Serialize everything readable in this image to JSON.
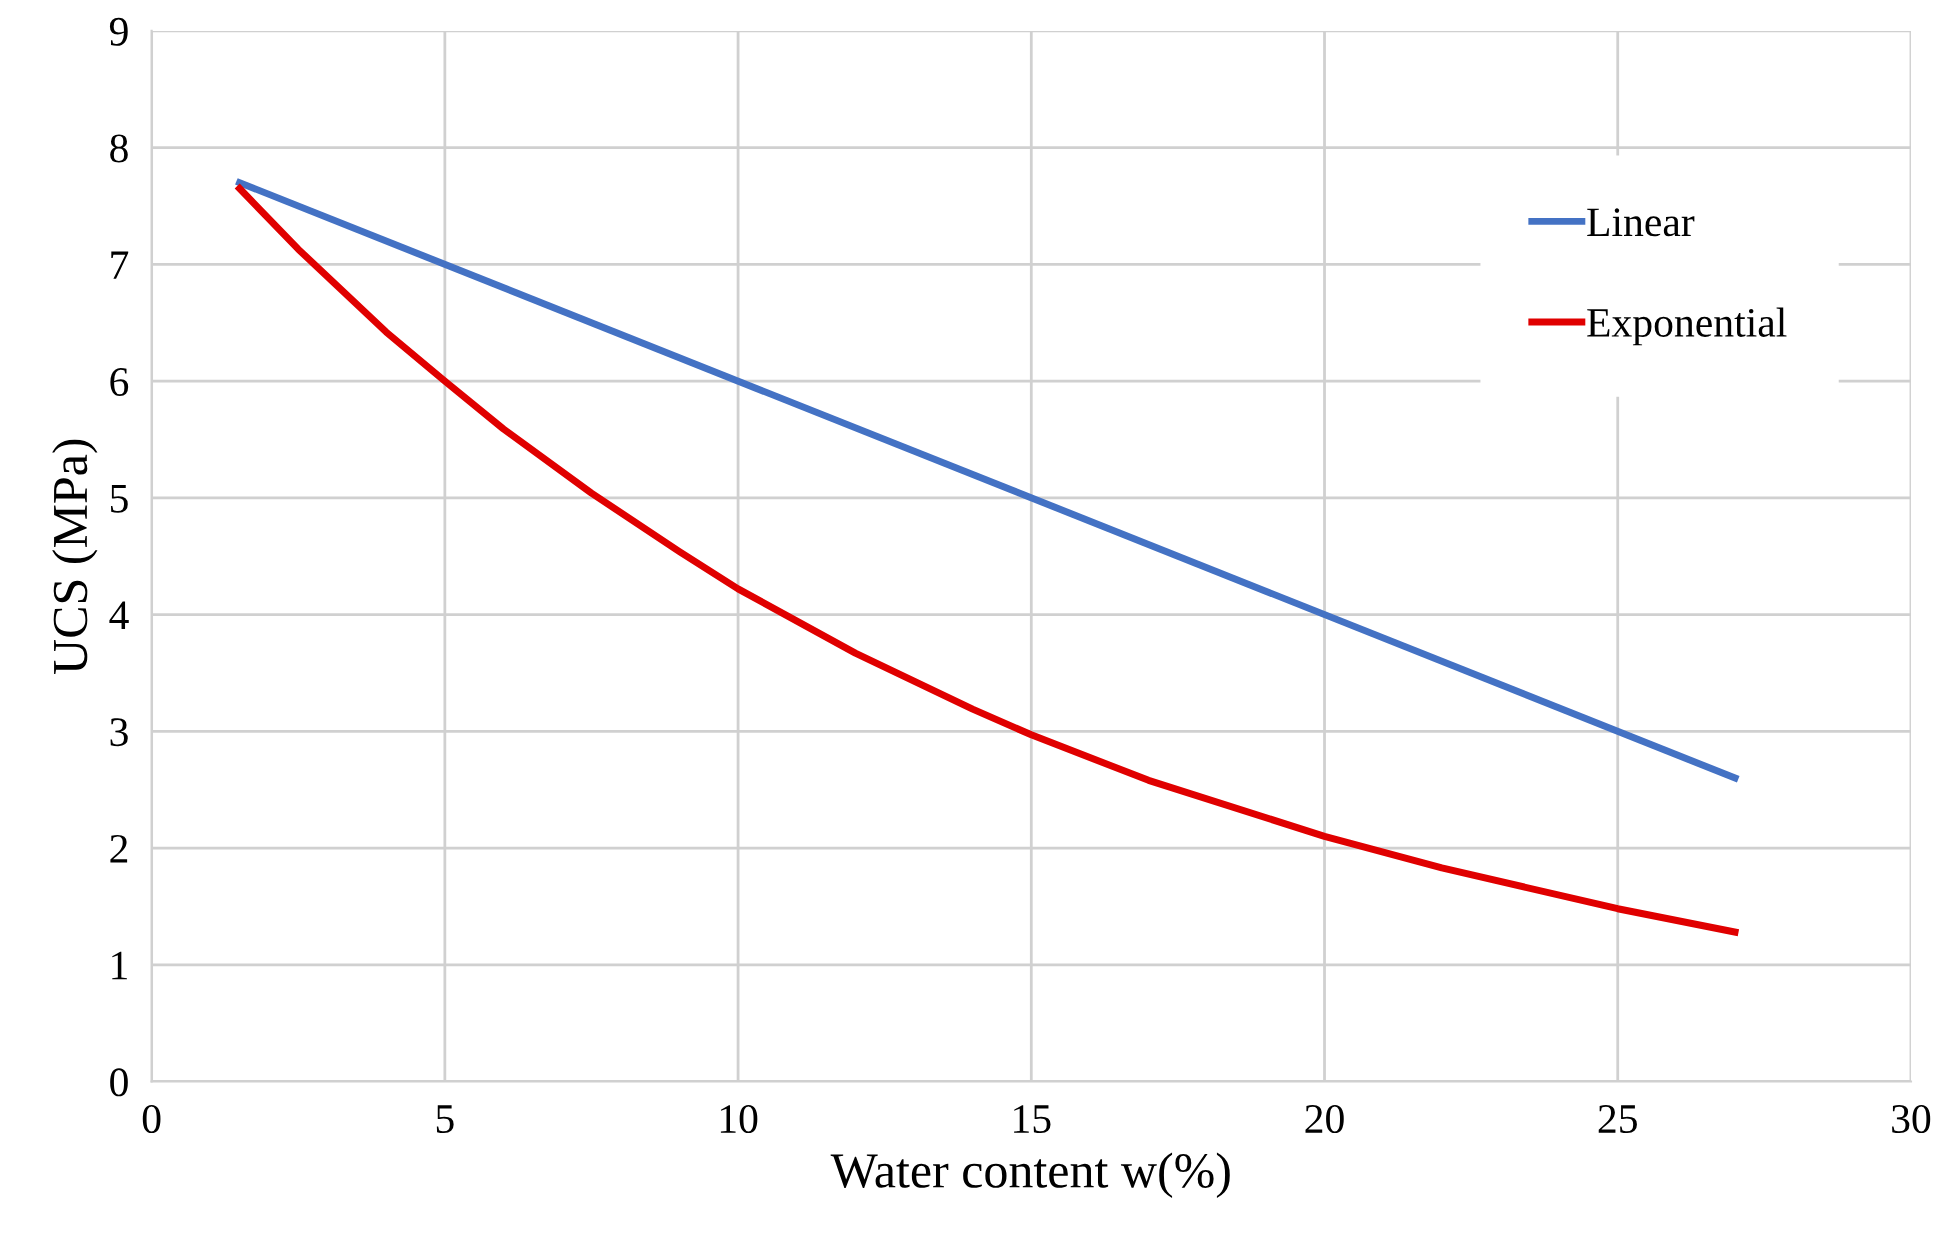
{
  "chart_data": {
    "type": "line",
    "xlabel": "Water content w(%)",
    "ylabel": "UCS (MPa)",
    "xlim": [
      0,
      30
    ],
    "xticks": [
      0,
      5,
      10,
      15,
      20,
      25,
      30
    ],
    "ylim": [
      0,
      9
    ],
    "yticks": [
      0,
      1,
      2,
      3,
      4,
      5,
      6,
      7,
      8,
      9
    ],
    "grid": true,
    "legend": "top right",
    "marker": "none",
    "line_style": "solid",
    "series": [
      {
        "name": "Linear",
        "color": "#4472c4",
        "x": [
          1.5,
          27
        ],
        "values": [
          7.7,
          2.6
        ]
      },
      {
        "name": "Exponential",
        "color": "#e00000",
        "x": [
          1.5,
          2.5,
          4,
          5,
          6,
          7.5,
          9,
          10,
          12,
          14,
          15,
          17,
          20,
          22,
          25,
          27
        ],
        "values": [
          7.65,
          7.13,
          6.42,
          6.0,
          5.59,
          5.04,
          4.54,
          4.22,
          3.67,
          3.19,
          2.97,
          2.58,
          2.1,
          1.83,
          1.48,
          1.28
        ]
      }
    ]
  }
}
